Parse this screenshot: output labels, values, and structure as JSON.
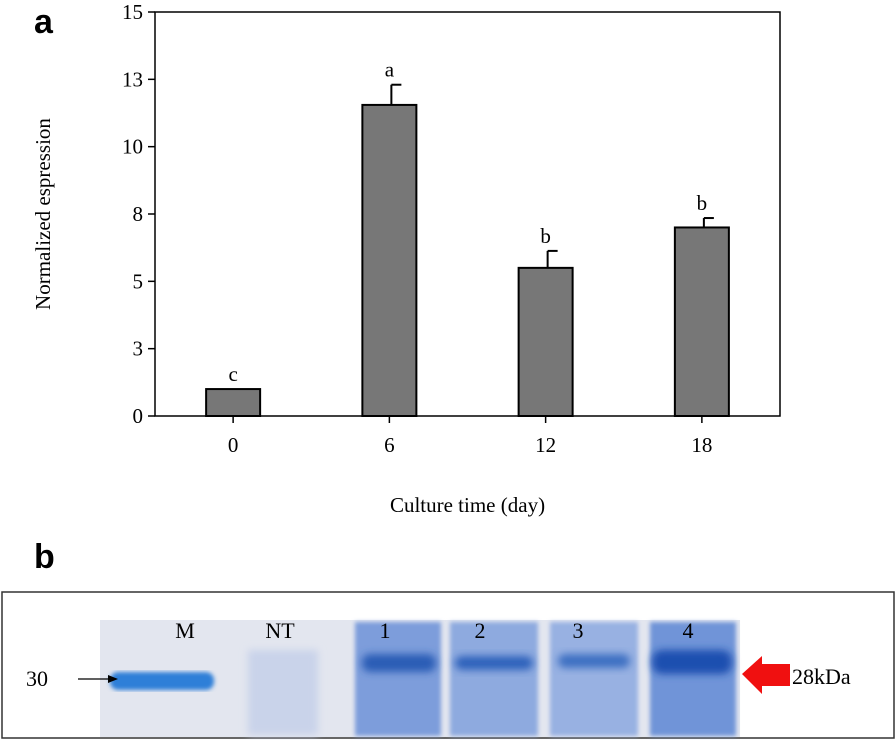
{
  "panels": {
    "a": "a",
    "b": "b"
  },
  "chart_data": {
    "type": "bar",
    "y_label": "Normalized espression",
    "x_label": "Culture time (day)",
    "categories": [
      "0",
      "6",
      "12",
      "18"
    ],
    "values": [
      1.0,
      11.55,
      5.5,
      7.0
    ],
    "errors": [
      0,
      0.75,
      0.63,
      0.35
    ],
    "letters": [
      "c",
      "a",
      "b",
      "b"
    ],
    "color": "#777777",
    "ylim": [
      0,
      15
    ],
    "yticks": [
      0,
      {
        "value": 2.5,
        "label": "3"
      },
      5,
      {
        "value": 7.5,
        "label": "8"
      },
      10,
      {
        "value": 12.5,
        "label": "13"
      },
      15
    ]
  },
  "gel": {
    "lanes": [
      "M",
      "NT",
      "1",
      "2",
      "3",
      "4"
    ],
    "marker": "30",
    "band_size": "28kDa"
  }
}
